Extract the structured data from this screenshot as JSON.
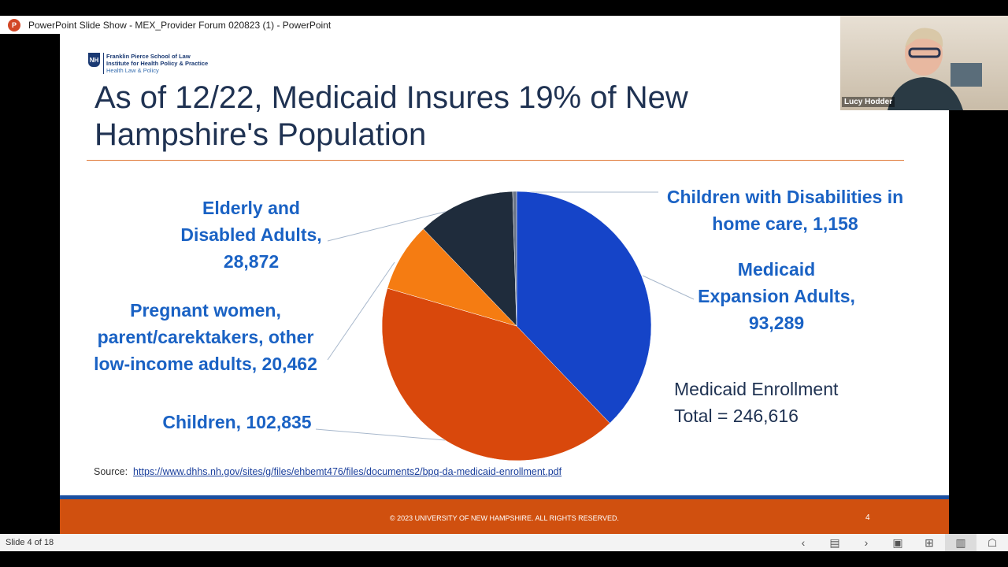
{
  "window": {
    "title": "PowerPoint Slide Show  -  MEX_Provider Forum 020823 (1) - PowerPoint",
    "app_icon": "powerpoint-icon"
  },
  "slide": {
    "logo": {
      "mark": "NH",
      "line1": "Franklin Pierce School of Law",
      "line2": "Institute for Health Policy & Practice",
      "line3": "Health Law & Policy"
    },
    "title": "As of 12/22, Medicaid Insures 19% of New Hampshire's Population",
    "labels": {
      "elderly": [
        "Elderly and",
        "Disabled Adults,",
        "28,872"
      ],
      "pregnant": [
        "Pregnant women,",
        "parent/carektakers, other",
        "low-income adults, 20,462"
      ],
      "children": "Children, 102,835",
      "disabilities": [
        "Children with Disabilities in",
        "home care, 1,158"
      ],
      "expansion": [
        "Medicaid",
        "Expansion Adults,",
        "93,289"
      ]
    },
    "total": [
      "Medicaid Enrollment",
      "Total = 246,616"
    ],
    "source_label": "Source:",
    "source_link": "https://www.dhhs.nh.gov/sites/g/files/ehbemt476/files/documents2/bpq-da-medicaid-enrollment.pdf",
    "footer": "© 2023 UNIVERSITY OF NEW HAMPSHIRE. ALL RIGHTS RESERVED.",
    "page_number": "4"
  },
  "chart_data": {
    "type": "pie",
    "start": "12 o'clock, clockwise",
    "slices": [
      {
        "name": "Medicaid Expansion Adults",
        "value": 93289,
        "color": "#1544c8"
      },
      {
        "name": "Children",
        "value": 102835,
        "color": "#d9480c"
      },
      {
        "name": "Pregnant women, parent/carektakers, other low-income adults",
        "value": 20462,
        "color": "#f57c12"
      },
      {
        "name": "Elderly and Disabled Adults",
        "value": 28872,
        "color": "#1f2c3c"
      },
      {
        "name": "Children with Disabilities in home care",
        "value": 1158,
        "color": "#6b7585"
      }
    ],
    "total": 246616
  },
  "webcam": {
    "name": "Lucy Hodder"
  },
  "statusbar": {
    "slide_indicator": "Slide 4 of 18",
    "buttons": [
      "previous-icon",
      "slide-menu-icon",
      "next-icon",
      "normal-view-icon",
      "slide-sorter-icon",
      "reading-view-icon",
      "slide-show-icon"
    ]
  }
}
